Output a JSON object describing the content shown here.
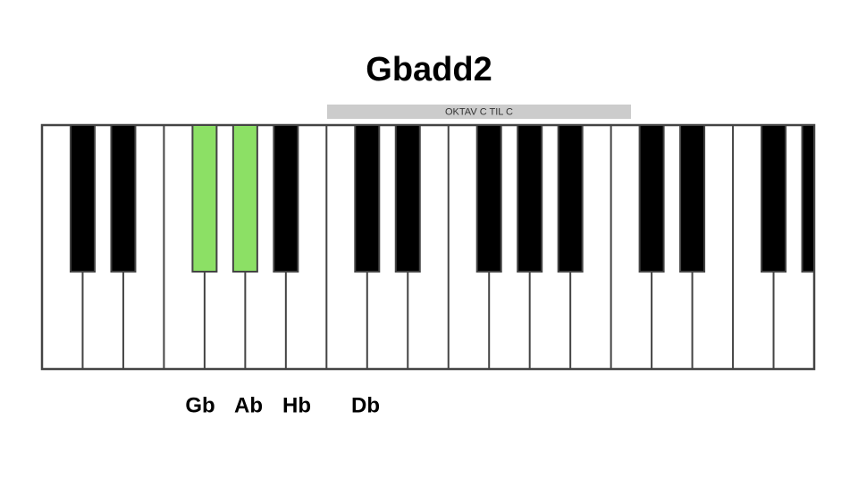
{
  "header": {
    "title": "Gbadd2"
  },
  "octave_label": "OKTAV C TIL C",
  "notes": [
    "Gb",
    "Ab",
    "Hb",
    "Db"
  ]
}
